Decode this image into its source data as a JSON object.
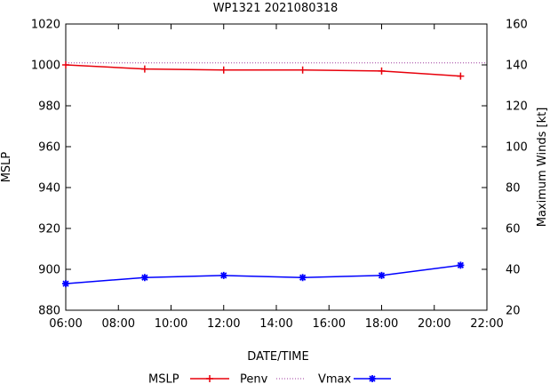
{
  "chart_data": {
    "type": "line",
    "title": "WP1321 2021080318",
    "xlabel": "DATE/TIME",
    "ylabel": "MSLP",
    "y2label": "Maximum Winds [kt]",
    "x": [
      0,
      3,
      6,
      9,
      12,
      15
    ],
    "xlim": [
      0,
      16
    ],
    "ylim": [
      880,
      1020
    ],
    "y2lim": [
      20,
      160
    ],
    "x_ticks": [
      {
        "value": 0,
        "label": "06:00"
      },
      {
        "value": 2,
        "label": "08:00"
      },
      {
        "value": 4,
        "label": "10:00"
      },
      {
        "value": 6,
        "label": "12:00"
      },
      {
        "value": 8,
        "label": "14:00"
      },
      {
        "value": 10,
        "label": "16:00"
      },
      {
        "value": 12,
        "label": "18:00"
      },
      {
        "value": 14,
        "label": "20:00"
      },
      {
        "value": 16,
        "label": "22:00"
      }
    ],
    "y_ticks": [
      {
        "value": 880,
        "label": "880"
      },
      {
        "value": 900,
        "label": "900"
      },
      {
        "value": 920,
        "label": "920"
      },
      {
        "value": 940,
        "label": "940"
      },
      {
        "value": 960,
        "label": "960"
      },
      {
        "value": 980,
        "label": "980"
      },
      {
        "value": 1000,
        "label": "1000"
      },
      {
        "value": 1020,
        "label": "1020"
      }
    ],
    "y2_ticks": [
      {
        "value": 20,
        "label": "20"
      },
      {
        "value": 40,
        "label": "40"
      },
      {
        "value": 60,
        "label": "60"
      },
      {
        "value": 80,
        "label": "80"
      },
      {
        "value": 100,
        "label": "100"
      },
      {
        "value": 120,
        "label": "120"
      },
      {
        "value": 140,
        "label": "140"
      },
      {
        "value": 160,
        "label": "160"
      }
    ],
    "series": [
      {
        "name": "MSLP",
        "axis": "y",
        "color": "#e8000b",
        "style": "solid",
        "marker": "plus",
        "values": [
          1000,
          998,
          997.5,
          997.5,
          997,
          994.5
        ]
      },
      {
        "name": "Penv",
        "axis": "y",
        "color": "#9e3a9e",
        "style": "dotted",
        "marker": "none",
        "values": [
          1001,
          1001,
          1001,
          1001,
          1001,
          1001
        ]
      },
      {
        "name": "Vmax",
        "axis": "y2",
        "color": "#0000ff",
        "style": "solid",
        "marker": "star",
        "values": [
          33,
          36,
          37,
          36,
          37,
          42
        ]
      }
    ],
    "legend": {
      "placement": "bottom-center",
      "labels": [
        "MSLP",
        "Penv",
        "Vmax"
      ]
    }
  }
}
